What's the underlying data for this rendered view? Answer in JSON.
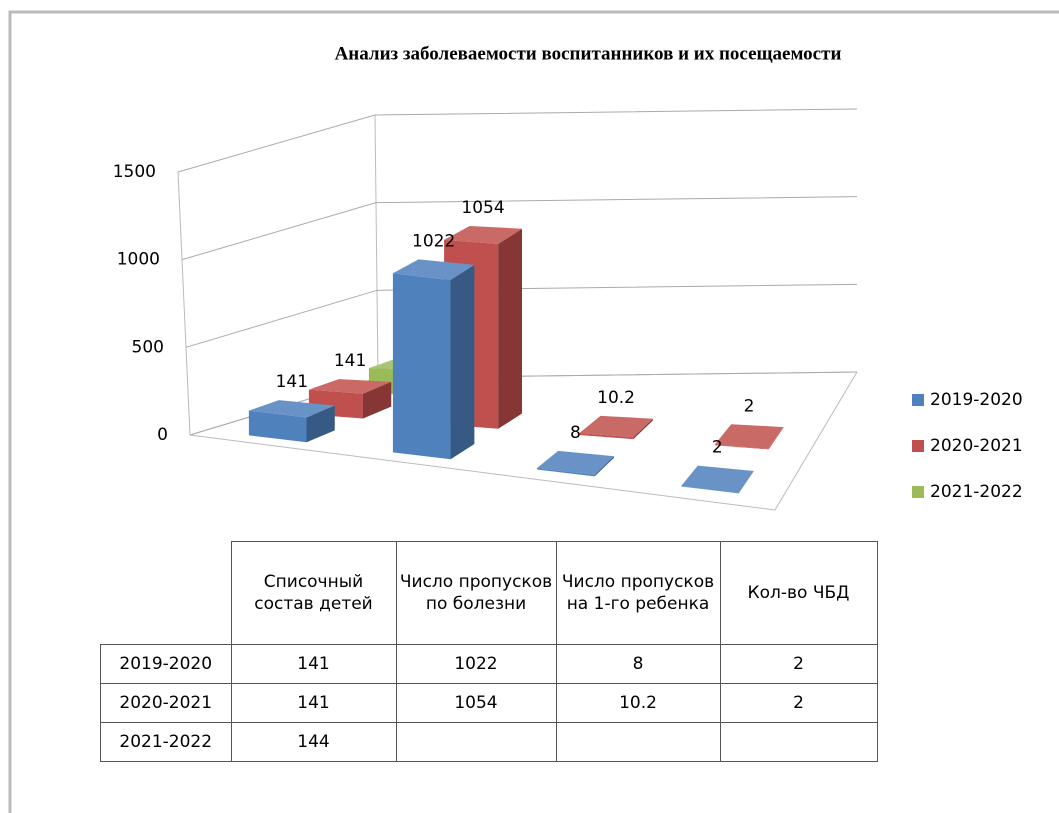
{
  "chart_data": {
    "type": "bar",
    "title": "Анализ заболеваемости воспитанников и их посещаемости",
    "categories": [
      "Списочный состав детей",
      "Число пропусков по болезни",
      "Число пропусков на 1-го ребенка",
      "Кол-во ЧБД"
    ],
    "series": [
      {
        "name": "2019-2020",
        "color": "#4f81bd",
        "values": [
          141,
          1022,
          8,
          2
        ]
      },
      {
        "name": "2020-2021",
        "color": "#c0504d",
        "values": [
          141,
          1054,
          10.2,
          2
        ]
      },
      {
        "name": "2021-2022",
        "color": "#9bbb59",
        "values": [
          144,
          null,
          null,
          null
        ]
      }
    ],
    "ylim": [
      0,
      1500
    ],
    "yticks": [
      0,
      500,
      1000,
      1500
    ],
    "grid": true,
    "legend": "right"
  }
}
